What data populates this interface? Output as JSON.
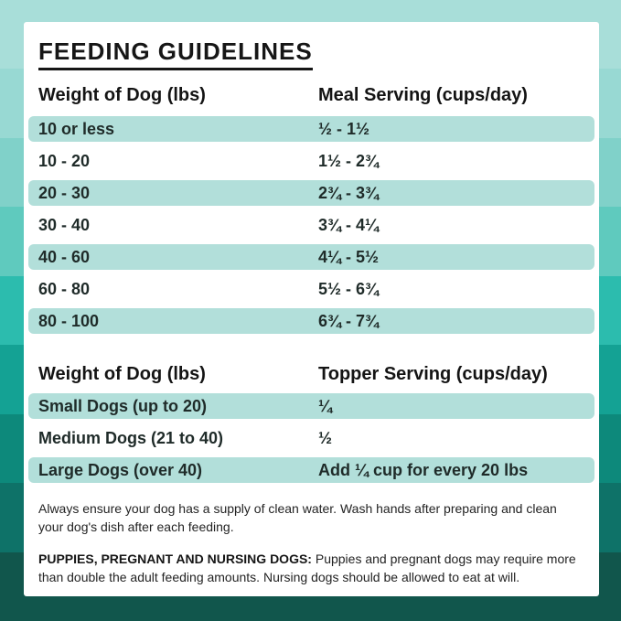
{
  "title": "FEEDING GUIDELINES",
  "meal_table": {
    "col1_header": "Weight of Dog (lbs)",
    "col2_header": "Meal Serving (cups/day)",
    "rows": [
      {
        "label": "10 or less",
        "value": "½ - 1½"
      },
      {
        "label": "10 - 20",
        "value": "1½ - 2¾"
      },
      {
        "label": "20 - 30",
        "value": "2¾ - 3¾"
      },
      {
        "label": "30 - 40",
        "value": "3¾ - 4¼"
      },
      {
        "label": "40 - 60",
        "value": "4¼ - 5½"
      },
      {
        "label": "60 - 80",
        "value": "5½ - 6¾"
      },
      {
        "label": "80 - 100",
        "value": "6¾ - 7¾"
      }
    ]
  },
  "topper_table": {
    "col1_header": "Weight of Dog (lbs)",
    "col2_header": "Topper Serving (cups/day)",
    "rows": [
      {
        "label": "Small Dogs (up to 20)",
        "value": "¼"
      },
      {
        "label": "Medium Dogs (21 to 40)",
        "value": "½"
      },
      {
        "label": "Large Dogs (over 40)",
        "value": "Add ¼ cup for every 20 lbs"
      }
    ]
  },
  "notes": {
    "water_note": "Always ensure your dog has a supply of clean water. Wash hands after preparing and clean your dog's dish after each feeding.",
    "special_note_label": "PUPPIES, PREGNANT AND NURSING DOGS:",
    "special_note_text": " Puppies and pregnant dogs may require more than double the adult feeding amounts. Nursing dogs should be allowed to eat at will."
  },
  "theme": {
    "card_bg": "#ffffff",
    "row_highlight": "#b2dfda",
    "title_color": "#161616",
    "background_bands": [
      "#a8ded9",
      "#98d9d3",
      "#80d1c9",
      "#5fcabe",
      "#2cbcae",
      "#14a294",
      "#0d897b",
      "#0e7268",
      "#11564c"
    ]
  }
}
